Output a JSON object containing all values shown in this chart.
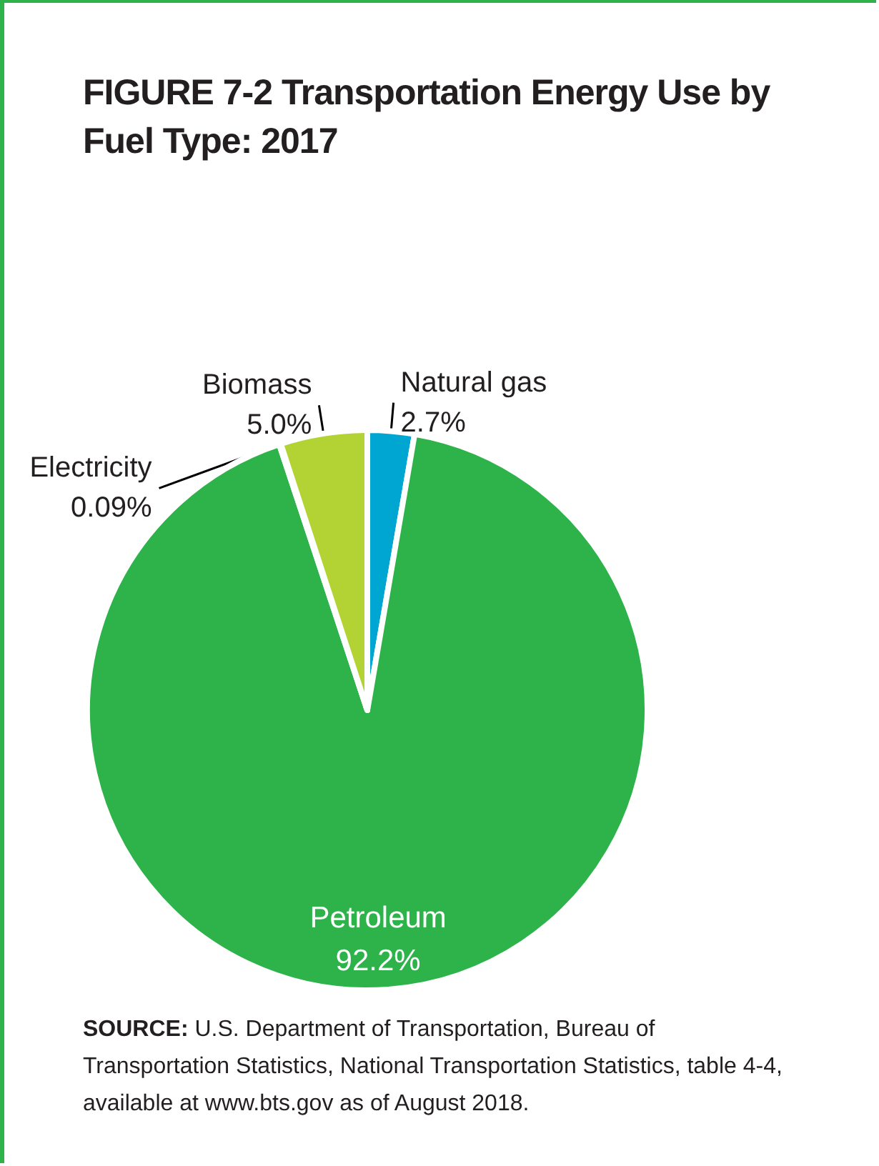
{
  "chart_data": {
    "type": "pie",
    "title": "FIGURE 7-2    Transportation Energy Use by Fuel Type: 2017",
    "categories": [
      "Natural gas",
      "Petroleum",
      "Electricity",
      "Biomass"
    ],
    "values": [
      2.7,
      92.2,
      0.09,
      5.0
    ],
    "value_labels": [
      "2.7%",
      "92.2%",
      "0.09%",
      "5.0%"
    ],
    "colors": [
      "#00a6d2",
      "#2db34a",
      "#5b2d8e",
      "#b3d334"
    ],
    "legend": false,
    "annotations": [
      "SOURCE: U.S. Department of Transportation, Bureau of Transportation Statistics, National Transportation Statistics, table 4-4, available at www.bts.gov as of August 2018."
    ]
  }
}
